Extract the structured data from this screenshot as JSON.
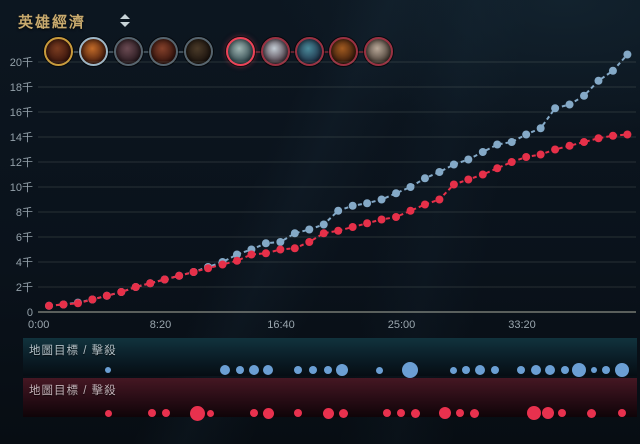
{
  "header": {
    "title": "英雄經濟",
    "sort_icon": "up-down-chevrons"
  },
  "champions": [
    {
      "team": "blue",
      "ring": "#c89b3c",
      "portrait": [
        "#7a3c20",
        "#3a150d"
      ],
      "highlighted": false
    },
    {
      "team": "blue",
      "ring": "#9db6c6",
      "portrait": [
        "#c06a28",
        "#4a1d0e"
      ],
      "highlighted": false
    },
    {
      "team": "blue",
      "ring": "#56646e",
      "portrait": [
        "#6a4a52",
        "#291a20"
      ],
      "highlighted": false
    },
    {
      "team": "blue",
      "ring": "#56646e",
      "portrait": [
        "#83402a",
        "#36140e"
      ],
      "highlighted": false
    },
    {
      "team": "blue",
      "ring": "#56646e",
      "portrait": [
        "#4a3a28",
        "#1b130e"
      ],
      "highlighted": false
    },
    {
      "team": "red",
      "ring": "#ef4257",
      "portrait": [
        "#9fb5b2",
        "#2e464c"
      ],
      "highlighted": true
    },
    {
      "team": "red",
      "ring": "#9a3142",
      "portrait": [
        "#c2ccd4",
        "#4a3a44"
      ],
      "highlighted": false
    },
    {
      "team": "red",
      "ring": "#9a3142",
      "portrait": [
        "#4a8a9a",
        "#1c2e44"
      ],
      "highlighted": false
    },
    {
      "team": "red",
      "ring": "#9a3142",
      "portrait": [
        "#a05a20",
        "#3a1c0c"
      ],
      "highlighted": false
    },
    {
      "team": "red",
      "ring": "#9a3142",
      "portrait": [
        "#b8a898",
        "#463b33"
      ],
      "highlighted": false
    }
  ],
  "chart_data": {
    "type": "line",
    "title": "英雄經濟",
    "x_unit": "minute",
    "x_ticks": [
      "0:00",
      "8:20",
      "16:40",
      "25:00",
      "33:20"
    ],
    "y_ticks": [
      "0",
      "2千",
      "4千",
      "6千",
      "8千",
      "10千",
      "12千",
      "14千",
      "16千",
      "18千",
      "20千"
    ],
    "ylim": [
      0,
      21000
    ],
    "grid": true,
    "series": [
      {
        "name": "blue-team-gold",
        "color": "#84a9c7",
        "values": [
          500,
          600,
          750,
          1000,
          1300,
          1600,
          2000,
          2300,
          2600,
          2900,
          3200,
          3600,
          4000,
          4600,
          5000,
          5500,
          5600,
          6300,
          6600,
          7000,
          8100,
          8500,
          8700,
          9000,
          9500,
          10000,
          10700,
          11200,
          11800,
          12200,
          12800,
          13400,
          13600,
          14200,
          14700,
          16300,
          16600,
          17300,
          18500,
          19300,
          20600
        ]
      },
      {
        "name": "red-team-gold",
        "color": "#e63049",
        "values": [
          500,
          600,
          700,
          1000,
          1300,
          1600,
          2000,
          2300,
          2600,
          2900,
          3200,
          3500,
          3800,
          4100,
          4600,
          4700,
          5000,
          5100,
          5600,
          6300,
          6500,
          6800,
          7100,
          7400,
          7600,
          8100,
          8600,
          9000,
          10200,
          10600,
          11000,
          11500,
          12000,
          12400,
          12600,
          13000,
          13300,
          13600,
          13900,
          14100,
          14200
        ]
      }
    ]
  },
  "strips": {
    "blue": {
      "label": "地圖目標 / 擊殺",
      "dot_color": "#6b9fd4",
      "events": [
        {
          "x": 85,
          "r": 3
        },
        {
          "x": 202,
          "r": 5
        },
        {
          "x": 217,
          "r": 4
        },
        {
          "x": 231,
          "r": 5
        },
        {
          "x": 245,
          "r": 5
        },
        {
          "x": 275,
          "r": 4
        },
        {
          "x": 290,
          "r": 4
        },
        {
          "x": 305,
          "r": 4
        },
        {
          "x": 319,
          "r": 6
        },
        {
          "x": 356,
          "r": 3.5
        },
        {
          "x": 387,
          "r": 8
        },
        {
          "x": 430,
          "r": 3.5
        },
        {
          "x": 443,
          "r": 4
        },
        {
          "x": 457,
          "r": 5
        },
        {
          "x": 472,
          "r": 4
        },
        {
          "x": 498,
          "r": 4
        },
        {
          "x": 513,
          "r": 5
        },
        {
          "x": 527,
          "r": 5
        },
        {
          "x": 542,
          "r": 4
        },
        {
          "x": 556,
          "r": 7
        },
        {
          "x": 571,
          "r": 3
        },
        {
          "x": 583,
          "r": 4
        },
        {
          "x": 599,
          "r": 7
        }
      ]
    },
    "red": {
      "label": "地圖目標 / 擊殺",
      "dot_color": "#e8314e",
      "events": [
        {
          "x": 85,
          "r": 3.5
        },
        {
          "x": 129,
          "r": 4
        },
        {
          "x": 143,
          "r": 4
        },
        {
          "x": 174,
          "r": 7.5
        },
        {
          "x": 187,
          "r": 3.5
        },
        {
          "x": 231,
          "r": 4
        },
        {
          "x": 245,
          "r": 5.5
        },
        {
          "x": 275,
          "r": 4
        },
        {
          "x": 305,
          "r": 5.5
        },
        {
          "x": 320,
          "r": 4.5
        },
        {
          "x": 364,
          "r": 4
        },
        {
          "x": 378,
          "r": 4
        },
        {
          "x": 392,
          "r": 4.5
        },
        {
          "x": 422,
          "r": 6
        },
        {
          "x": 437,
          "r": 4
        },
        {
          "x": 451,
          "r": 4.5
        },
        {
          "x": 511,
          "r": 7
        },
        {
          "x": 525,
          "r": 6
        },
        {
          "x": 539,
          "r": 4
        },
        {
          "x": 568,
          "r": 4.5
        },
        {
          "x": 599,
          "r": 4
        }
      ]
    }
  }
}
